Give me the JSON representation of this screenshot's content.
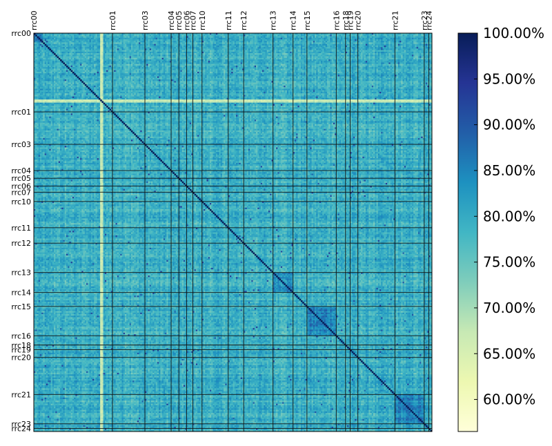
{
  "chart_data": {
    "type": "heatmap",
    "title": "",
    "xlabel": "",
    "ylabel": "",
    "matrix_size": 258,
    "value_range": [
      56.5,
      100.0
    ],
    "value_unit": "%",
    "colormap": "YlGnBu",
    "diagonal_value": 100.0,
    "typical_offdiagonal_range": [
      72,
      86
    ],
    "groups": [
      {
        "name": "rrc00",
        "start": 0
      },
      {
        "name": "rrc01",
        "start": 51
      },
      {
        "name": "rrc03",
        "start": 72
      },
      {
        "name": "rrc04",
        "start": 89
      },
      {
        "name": "rrc05",
        "start": 94
      },
      {
        "name": "rrc06",
        "start": 99
      },
      {
        "name": "rrc07",
        "start": 103
      },
      {
        "name": "rrc10",
        "start": 109
      },
      {
        "name": "rrc11",
        "start": 126
      },
      {
        "name": "rrc12",
        "start": 136
      },
      {
        "name": "rrc13",
        "start": 155
      },
      {
        "name": "rrc14",
        "start": 168
      },
      {
        "name": "rrc15",
        "start": 177
      },
      {
        "name": "rrc16",
        "start": 196
      },
      {
        "name": "rrc18",
        "start": 202
      },
      {
        "name": "rrc19",
        "start": 205
      },
      {
        "name": "rrc20",
        "start": 210
      },
      {
        "name": "rrc21",
        "start": 234
      },
      {
        "name": "rrc23",
        "start": 253
      },
      {
        "name": "rrc24",
        "start": 256
      }
    ],
    "high_similarity_blocks": [
      {
        "label": "rrc15",
        "from": 177,
        "to": 196
      },
      {
        "label": "rrc21",
        "from": 234,
        "to": 253
      },
      {
        "label": "rrc13",
        "from": 155,
        "to": 168
      },
      {
        "label": "rrc00",
        "from": 0,
        "to": 6
      }
    ],
    "low_similarity_lines": [
      {
        "index": 43,
        "value": 64
      },
      {
        "index": 44,
        "value": 66
      }
    ],
    "colorbar": {
      "min": 56.5,
      "max": 100.0,
      "ticks": [
        {
          "value": 60,
          "label": "60.00%"
        },
        {
          "value": 65,
          "label": "65.00%"
        },
        {
          "value": 70,
          "label": "70.00%"
        },
        {
          "value": 75,
          "label": "75.00%"
        },
        {
          "value": 80,
          "label": "80.00%"
        },
        {
          "value": 85,
          "label": "85.00%"
        },
        {
          "value": 90,
          "label": "90.00%"
        },
        {
          "value": 95,
          "label": "95.00%"
        },
        {
          "value": 100,
          "label": "100.00%"
        }
      ],
      "colors": [
        "#ffffd9",
        "#edf8b1",
        "#c7e9b4",
        "#7fcdbb",
        "#41b6c4",
        "#1d91c0",
        "#225ea8",
        "#253494",
        "#081d58"
      ]
    }
  }
}
